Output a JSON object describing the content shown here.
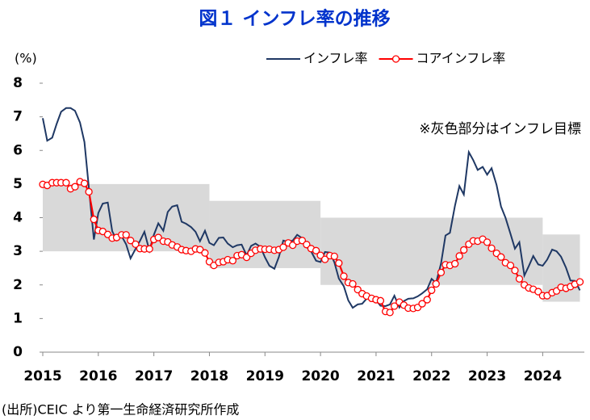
{
  "chart_data": {
    "type": "line",
    "title": "図１ インフレ率の推移",
    "y_axis_label": "(%)",
    "annotation": "※灰色部分はインフレ目標",
    "source": "(出所)CEIC より第一生命経済研究所作成",
    "legend": "top-right",
    "xlim": [
      2015,
      2024.75
    ],
    "xticks": [
      2015,
      2016,
      2017,
      2018,
      2019,
      2020,
      2021,
      2022,
      2023,
      2024
    ],
    "ylim": [
      0,
      8
    ],
    "yticks": [
      0,
      1,
      2,
      3,
      4,
      5,
      6,
      7,
      8
    ],
    "band_color": "#d9d9d9",
    "target_band": [
      {
        "from": 2015,
        "to": 2018,
        "low": 3,
        "high": 5
      },
      {
        "from": 2018,
        "to": 2020,
        "low": 2.5,
        "high": 4.5
      },
      {
        "from": 2020,
        "to": 2024,
        "low": 2,
        "high": 4
      },
      {
        "from": 2024,
        "to": 2024.67,
        "low": 1.5,
        "high": 3.5
      }
    ],
    "x": [
      2015,
      2015.08,
      2015.17,
      2015.25,
      2015.33,
      2015.42,
      2015.5,
      2015.58,
      2015.67,
      2015.75,
      2015.83,
      2015.92,
      2016,
      2016.08,
      2016.17,
      2016.25,
      2016.33,
      2016.42,
      2016.5,
      2016.58,
      2016.67,
      2016.75,
      2016.83,
      2016.92,
      2017,
      2017.08,
      2017.17,
      2017.25,
      2017.33,
      2017.42,
      2017.5,
      2017.58,
      2017.67,
      2017.75,
      2017.83,
      2017.92,
      2018,
      2018.08,
      2018.17,
      2018.25,
      2018.33,
      2018.42,
      2018.5,
      2018.58,
      2018.67,
      2018.75,
      2018.83,
      2018.92,
      2019,
      2019.08,
      2019.17,
      2019.25,
      2019.33,
      2019.42,
      2019.5,
      2019.58,
      2019.67,
      2019.75,
      2019.83,
      2019.92,
      2020,
      2020.08,
      2020.17,
      2020.25,
      2020.33,
      2020.42,
      2020.5,
      2020.58,
      2020.67,
      2020.75,
      2020.83,
      2020.92,
      2021,
      2021.08,
      2021.17,
      2021.25,
      2021.33,
      2021.42,
      2021.5,
      2021.58,
      2021.67,
      2021.75,
      2021.83,
      2021.92,
      2022,
      2022.08,
      2022.17,
      2022.25,
      2022.33,
      2022.42,
      2022.5,
      2022.58,
      2022.67,
      2022.75,
      2022.83,
      2022.92,
      2023,
      2023.08,
      2023.17,
      2023.25,
      2023.33,
      2023.42,
      2023.5,
      2023.58,
      2023.67,
      2023.75,
      2023.83,
      2023.92,
      2024,
      2024.08,
      2024.17,
      2024.25,
      2024.33,
      2024.42,
      2024.5,
      2024.58,
      2024.67
    ],
    "series": [
      {
        "name": "インフレ率",
        "color": "#1f3864",
        "markers": false,
        "values": [
          6.96,
          6.29,
          6.38,
          6.79,
          7.15,
          7.26,
          7.26,
          7.18,
          6.83,
          6.25,
          4.89,
          3.35,
          4.14,
          4.42,
          4.45,
          3.6,
          3.33,
          3.45,
          3.21,
          2.79,
          3.07,
          3.31,
          3.58,
          3.02,
          3.49,
          3.83,
          3.61,
          4.17,
          4.33,
          4.37,
          3.88,
          3.82,
          3.72,
          3.58,
          3.3,
          3.61,
          3.25,
          3.18,
          3.4,
          3.41,
          3.23,
          3.12,
          3.18,
          3.2,
          2.88,
          3.16,
          3.23,
          3.13,
          2.82,
          2.57,
          2.48,
          2.83,
          3.32,
          3.28,
          3.32,
          3.49,
          3.39,
          3.13,
          3.0,
          2.72,
          2.68,
          2.98,
          2.96,
          2.67,
          2.19,
          1.96,
          1.54,
          1.32,
          1.42,
          1.44,
          1.59,
          1.68,
          1.55,
          1.38,
          1.37,
          1.42,
          1.68,
          1.33,
          1.52,
          1.59,
          1.6,
          1.66,
          1.75,
          1.87,
          2.18,
          2.06,
          2.64,
          3.47,
          3.55,
          4.35,
          4.94,
          4.69,
          5.95,
          5.71,
          5.42,
          5.51,
          5.28,
          5.47,
          4.97,
          4.33,
          4.0,
          3.52,
          3.08,
          3.27,
          2.28,
          2.56,
          2.86,
          2.61,
          2.57,
          2.75,
          3.05,
          3.0,
          2.84,
          2.51,
          2.13,
          2.12,
          1.84
        ]
      },
      {
        "name": "コアインフレ率",
        "color": "#ff0000",
        "markers": true,
        "values": [
          4.99,
          4.96,
          5.04,
          5.04,
          5.04,
          5.04,
          4.86,
          4.92,
          5.07,
          5.02,
          4.77,
          3.95,
          3.62,
          3.59,
          3.5,
          3.39,
          3.41,
          3.49,
          3.49,
          3.32,
          3.21,
          3.08,
          3.07,
          3.07,
          3.35,
          3.41,
          3.3,
          3.28,
          3.19,
          3.13,
          3.05,
          3.02,
          3.0,
          3.07,
          3.05,
          2.95,
          2.69,
          2.58,
          2.67,
          2.69,
          2.75,
          2.72,
          2.87,
          2.9,
          2.82,
          2.94,
          3.03,
          3.07,
          3.06,
          3.06,
          3.03,
          3.05,
          3.12,
          3.25,
          3.18,
          3.3,
          3.32,
          3.2,
          3.08,
          3.02,
          2.88,
          2.76,
          2.87,
          2.85,
          2.65,
          2.26,
          2.07,
          2.03,
          1.86,
          1.74,
          1.67,
          1.6,
          1.56,
          1.53,
          1.21,
          1.18,
          1.37,
          1.49,
          1.4,
          1.31,
          1.3,
          1.33,
          1.44,
          1.56,
          1.84,
          2.03,
          2.37,
          2.6,
          2.58,
          2.63,
          2.86,
          3.04,
          3.21,
          3.31,
          3.3,
          3.36,
          3.27,
          3.09,
          2.94,
          2.83,
          2.66,
          2.58,
          2.43,
          2.18,
          2.0,
          1.91,
          1.87,
          1.8,
          1.68,
          1.68,
          1.77,
          1.82,
          1.93,
          1.9,
          1.95,
          2.02,
          2.09
        ]
      }
    ]
  }
}
